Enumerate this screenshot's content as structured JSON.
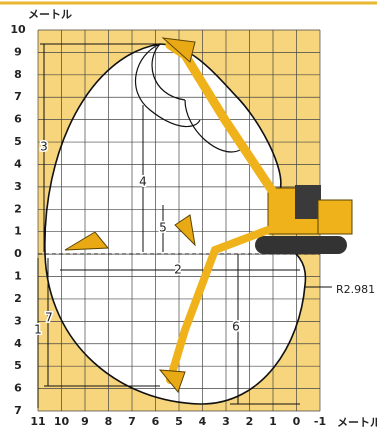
{
  "unit_top": "メートル",
  "y_labels": [
    "10",
    "9",
    "8",
    "7",
    "6",
    "5",
    "4",
    "3",
    "2",
    "1",
    "0",
    "1",
    "2",
    "3",
    "4",
    "5",
    "6",
    "7"
  ],
  "x_labels": [
    "11",
    "10",
    "9",
    "8",
    "7",
    "6",
    "5",
    "4",
    "3",
    "2",
    "1",
    "0",
    "-1"
  ],
  "unit_bottom": "メートル",
  "dimensions": [
    "1",
    "2",
    "3",
    "4",
    "5",
    "6",
    "7"
  ],
  "radius_label": "R2.981"
}
